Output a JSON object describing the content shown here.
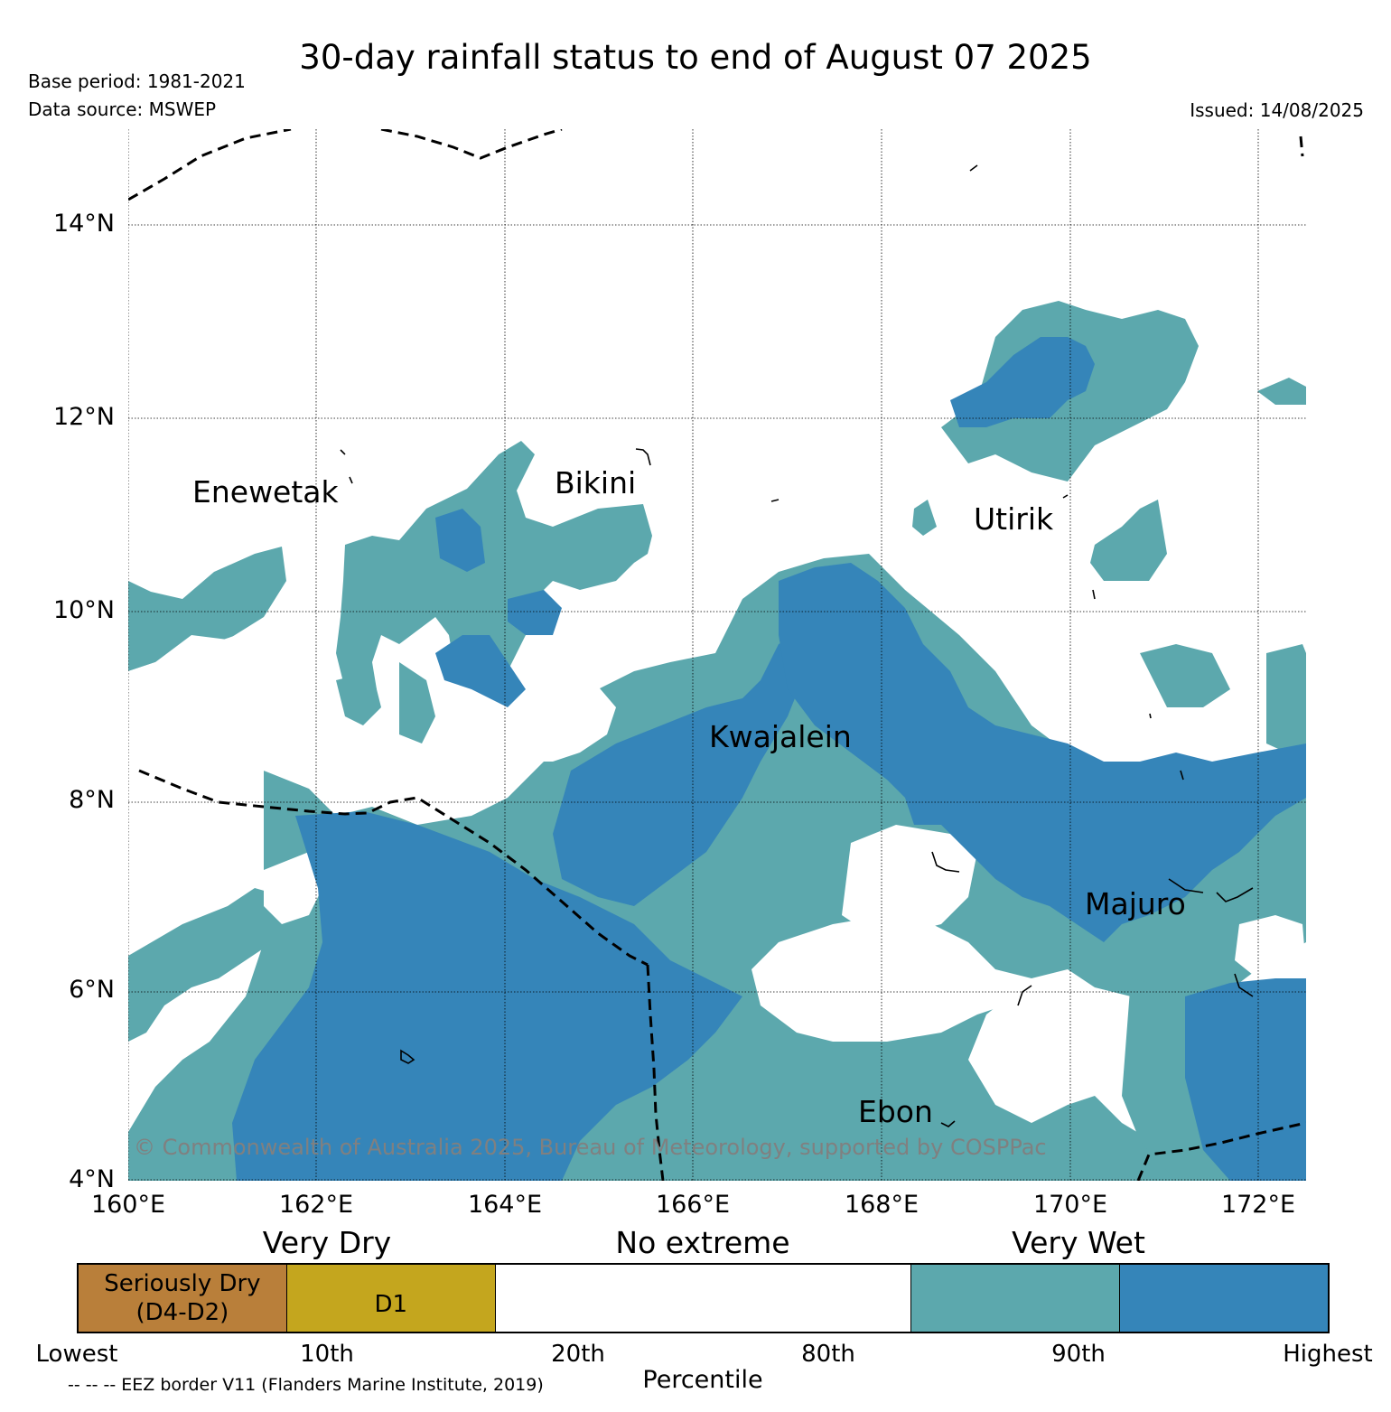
{
  "title": "30-day rainfall status to end of August 07 2025",
  "base_period": "Base period: 1981-2021",
  "data_source": "Data source: MSWEP",
  "issued": "Issued: 14/08/2025",
  "map": {
    "lon_range": [
      160,
      172.5
    ],
    "lat_range": [
      4,
      15
    ],
    "lat_ticks": [
      "4°N",
      "6°N",
      "8°N",
      "10°N",
      "12°N",
      "14°N"
    ],
    "lon_ticks": [
      "160°E",
      "162°E",
      "164°E",
      "166°E",
      "168°E",
      "170°E",
      "172°E"
    ],
    "places": [
      "Enewetak",
      "Bikini",
      "Utirik",
      "Kwajalein",
      "Majuro",
      "Ebon"
    ],
    "copyright": "© Commonwealth of Australia 2025, Bureau of Meteorology, supported by COSPPac",
    "colors": {
      "very_wet": "#5ca8ad",
      "wettest": "#3585b9",
      "no_extreme": "#ffffff"
    }
  },
  "legend": {
    "category_labels": [
      "Very Dry",
      "No extreme",
      "Very Wet"
    ],
    "segments": [
      {
        "label_line1": "Seriously Dry",
        "label_line2": "(D4-D2)",
        "color": "#b97f3a"
      },
      {
        "label_line1": "D1",
        "label_line2": "",
        "color": "#c4a61e"
      },
      {
        "label_line1": "",
        "label_line2": "",
        "color": "#ffffff"
      },
      {
        "label_line1": "",
        "label_line2": "",
        "color": "#ffffff"
      },
      {
        "label_line1": "",
        "label_line2": "",
        "color": "#5ca8ad"
      },
      {
        "label_line1": "",
        "label_line2": "",
        "color": "#3585b9"
      }
    ],
    "percentile_ticks": [
      "Lowest",
      "10th",
      "20th",
      "80th",
      "90th",
      "Highest"
    ],
    "axis_label": "Percentile",
    "eez_note": "-- -- -- EEZ border V11 (Flanders Marine Institute, 2019)"
  }
}
